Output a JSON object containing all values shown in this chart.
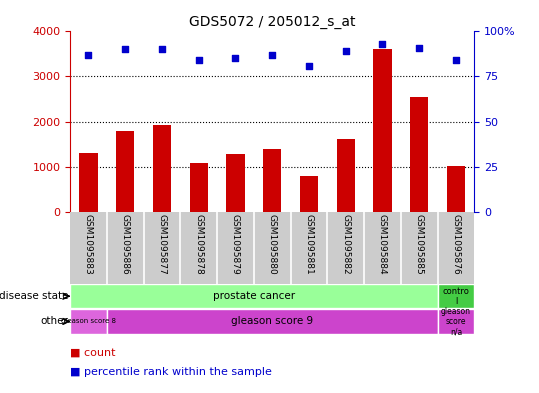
{
  "title": "GDS5072 / 205012_s_at",
  "samples": [
    "GSM1095883",
    "GSM1095886",
    "GSM1095877",
    "GSM1095878",
    "GSM1095879",
    "GSM1095880",
    "GSM1095881",
    "GSM1095882",
    "GSM1095884",
    "GSM1095885",
    "GSM1095876"
  ],
  "counts": [
    1300,
    1800,
    1930,
    1080,
    1270,
    1390,
    780,
    1610,
    3620,
    2540,
    1010
  ],
  "percentile_ranks": [
    87,
    90,
    90,
    84,
    85,
    87,
    81,
    89,
    93,
    91,
    84
  ],
  "ylim_left": [
    0,
    4000
  ],
  "ylim_right": [
    0,
    100
  ],
  "yticks_left": [
    0,
    1000,
    2000,
    3000,
    4000
  ],
  "yticks_right": [
    0,
    25,
    50,
    75,
    100
  ],
  "bar_color": "#cc0000",
  "dot_color": "#0000cc",
  "prostate_color": "#99ff99",
  "control_color": "#44cc44",
  "gleason8_color": "#dd66dd",
  "gleason9_color": "#cc44cc",
  "label_bg_color": "#cccccc",
  "gleason_score8_count": 1,
  "gleason_score9_count": 9,
  "prostate_count": 10,
  "control_count": 1
}
